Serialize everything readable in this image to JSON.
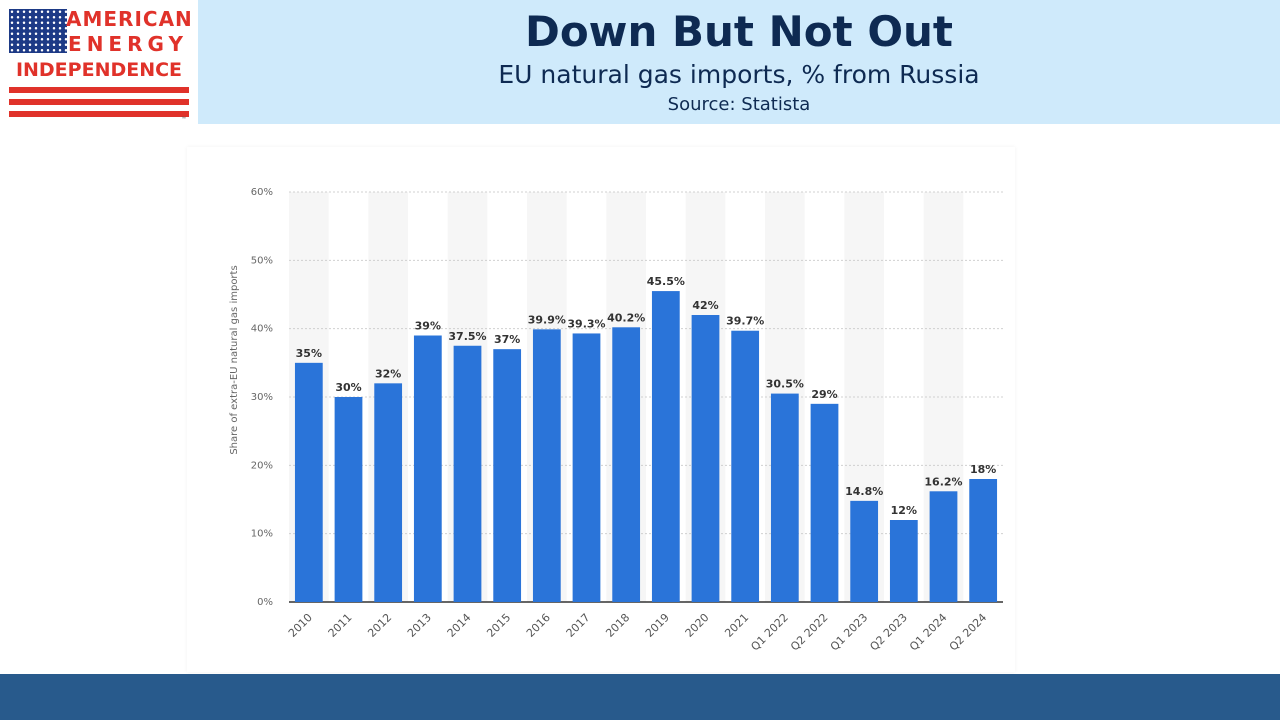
{
  "header": {
    "title": "Down But Not Out",
    "subtitle": "EU natural gas imports, % from Russia",
    "source": "Source: Statista"
  },
  "logo": {
    "line1": "AMERICAN",
    "line2": "ENERGY",
    "line3": "INDEPENDENCE",
    "tm": "™",
    "flag_icon": "us-flag-icon"
  },
  "colors": {
    "bar": "#2a74d9",
    "header_bg": "#cfeafb",
    "title_text": "#0e2a52",
    "logo_red": "#e0322a",
    "footer": "#285a8c"
  },
  "chart_data": {
    "type": "bar",
    "ylabel": "Share of extra-EU natural gas imports",
    "ylim": [
      0,
      60
    ],
    "yticks": [
      0,
      10,
      20,
      30,
      40,
      50,
      60
    ],
    "ytick_labels": [
      "0%",
      "10%",
      "20%",
      "30%",
      "40%",
      "50%",
      "60%"
    ],
    "categories": [
      "2010",
      "2011",
      "2012",
      "2013",
      "2014",
      "2015",
      "2016",
      "2017",
      "2018",
      "2019",
      "2020",
      "2021",
      "Q1 2022",
      "Q2 2022",
      "Q1 2023",
      "Q2 2023",
      "Q1 2024",
      "Q2 2024"
    ],
    "values": [
      35,
      30,
      32,
      39,
      37.5,
      37,
      39.9,
      39.3,
      40.2,
      45.5,
      42,
      39.7,
      30.5,
      29,
      14.8,
      12,
      16.2,
      18
    ],
    "value_labels": [
      "35%",
      "30%",
      "32%",
      "39%",
      "37.5%",
      "37%",
      "39.9%",
      "39.3%",
      "40.2%",
      "45.5%",
      "42%",
      "39.7%",
      "30.5%",
      "29%",
      "14.8%",
      "12%",
      "16.2%",
      "18%"
    ],
    "grid": true,
    "legend": "none"
  }
}
